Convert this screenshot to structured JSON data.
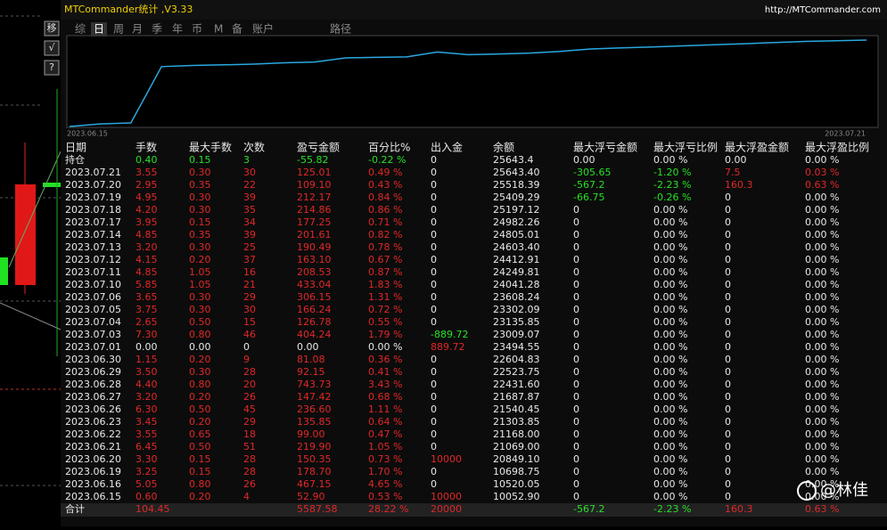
{
  "window": {
    "title": "MTCommander统计 ,V3.33",
    "url": "http://MTCommander.com"
  },
  "side_buttons": [
    "移",
    "√",
    "?"
  ],
  "tabs": [
    "综",
    "日",
    "周",
    "月",
    "季",
    "年",
    "币",
    "M",
    "备",
    "账户",
    "路径"
  ],
  "equity_chart": {
    "start_label": "2023.06.15",
    "end_label": "2023.07.21",
    "color": "#2aa8e0"
  },
  "table": {
    "headers": [
      "日期",
      "手数",
      "最大手数",
      "次数",
      "盈亏金额",
      "百分比%",
      "出入金",
      "余额",
      "最大浮亏金额",
      "最大浮亏比例",
      "最大浮盈金额",
      "最大浮盈比例"
    ],
    "rows": [
      [
        "持仓",
        "0.40",
        "0.15",
        "3",
        "-55.82",
        "-0.22 %",
        "0",
        "25643.4",
        "0.00",
        "0.00 %",
        "0.00",
        "0.00 %"
      ],
      [
        "2023.07.21",
        "3.55",
        "0.30",
        "30",
        "125.01",
        "0.49 %",
        "0",
        "25643.40",
        "-305.65",
        "-1.20 %",
        "7.5",
        "0.03 %"
      ],
      [
        "2023.07.20",
        "2.95",
        "0.35",
        "22",
        "109.10",
        "0.43 %",
        "0",
        "25518.39",
        "-567.2",
        "-2.23 %",
        "160.3",
        "0.63 %"
      ],
      [
        "2023.07.19",
        "4.95",
        "0.30",
        "39",
        "212.17",
        "0.84 %",
        "0",
        "25409.29",
        "-66.75",
        "-0.26 %",
        "0",
        "0.00 %"
      ],
      [
        "2023.07.18",
        "4.20",
        "0.30",
        "35",
        "214.86",
        "0.86 %",
        "0",
        "25197.12",
        "0",
        "0.00 %",
        "0",
        "0.00 %"
      ],
      [
        "2023.07.17",
        "3.95",
        "0.15",
        "34",
        "177.25",
        "0.71 %",
        "0",
        "24982.26",
        "0",
        "0.00 %",
        "0",
        "0.00 %"
      ],
      [
        "2023.07.14",
        "4.85",
        "0.35",
        "39",
        "201.61",
        "0.82 %",
        "0",
        "24805.01",
        "0",
        "0.00 %",
        "0",
        "0.00 %"
      ],
      [
        "2023.07.13",
        "3.20",
        "0.30",
        "25",
        "190.49",
        "0.78 %",
        "0",
        "24603.40",
        "0",
        "0.00 %",
        "0",
        "0.00 %"
      ],
      [
        "2023.07.12",
        "4.15",
        "0.20",
        "37",
        "163.10",
        "0.67 %",
        "0",
        "24412.91",
        "0",
        "0.00 %",
        "0",
        "0.00 %"
      ],
      [
        "2023.07.11",
        "4.85",
        "1.05",
        "16",
        "208.53",
        "0.87 %",
        "0",
        "24249.81",
        "0",
        "0.00 %",
        "0",
        "0.00 %"
      ],
      [
        "2023.07.10",
        "5.85",
        "1.05",
        "21",
        "433.04",
        "1.83 %",
        "0",
        "24041.28",
        "0",
        "0.00 %",
        "0",
        "0.00 %"
      ],
      [
        "2023.07.06",
        "3.65",
        "0.30",
        "29",
        "306.15",
        "1.31 %",
        "0",
        "23608.24",
        "0",
        "0.00 %",
        "0",
        "0.00 %"
      ],
      [
        "2023.07.05",
        "3.75",
        "0.30",
        "30",
        "166.24",
        "0.72 %",
        "0",
        "23302.09",
        "0",
        "0.00 %",
        "0",
        "0.00 %"
      ],
      [
        "2023.07.04",
        "2.65",
        "0.50",
        "15",
        "126.78",
        "0.55 %",
        "0",
        "23135.85",
        "0",
        "0.00 %",
        "0",
        "0.00 %"
      ],
      [
        "2023.07.03",
        "7.30",
        "0.80",
        "46",
        "404.24",
        "1.79 %",
        "-889.72",
        "23009.07",
        "0",
        "0.00 %",
        "0",
        "0.00 %"
      ],
      [
        "2023.07.01",
        "0.00",
        "0.00",
        "0",
        "0.00",
        "0.00 %",
        "889.72",
        "23494.55",
        "0",
        "0.00 %",
        "0",
        "0.00 %"
      ],
      [
        "2023.06.30",
        "1.15",
        "0.20",
        "9",
        "81.08",
        "0.36 %",
        "0",
        "22604.83",
        "0",
        "0.00 %",
        "0",
        "0.00 %"
      ],
      [
        "2023.06.29",
        "3.50",
        "0.30",
        "28",
        "92.15",
        "0.41 %",
        "0",
        "22523.75",
        "0",
        "0.00 %",
        "0",
        "0.00 %"
      ],
      [
        "2023.06.28",
        "4.40",
        "0.80",
        "20",
        "743.73",
        "3.43 %",
        "0",
        "22431.60",
        "0",
        "0.00 %",
        "0",
        "0.00 %"
      ],
      [
        "2023.06.27",
        "3.20",
        "0.20",
        "26",
        "147.42",
        "0.68 %",
        "0",
        "21687.87",
        "0",
        "0.00 %",
        "0",
        "0.00 %"
      ],
      [
        "2023.06.26",
        "6.30",
        "0.50",
        "45",
        "236.60",
        "1.11 %",
        "0",
        "21540.45",
        "0",
        "0.00 %",
        "0",
        "0.00 %"
      ],
      [
        "2023.06.23",
        "3.45",
        "0.20",
        "29",
        "135.85",
        "0.64 %",
        "0",
        "21303.85",
        "0",
        "0.00 %",
        "0",
        "0.00 %"
      ],
      [
        "2023.06.22",
        "3.55",
        "0.65",
        "18",
        "99.00",
        "0.47 %",
        "0",
        "21168.00",
        "0",
        "0.00 %",
        "0",
        "0.00 %"
      ],
      [
        "2023.06.21",
        "6.45",
        "0.50",
        "51",
        "219.90",
        "1.05 %",
        "0",
        "21069.00",
        "0",
        "0.00 %",
        "0",
        "0.00 %"
      ],
      [
        "2023.06.20",
        "3.30",
        "0.15",
        "28",
        "150.35",
        "0.73 %",
        "10000",
        "20849.10",
        "0",
        "0.00 %",
        "0",
        "0.00 %"
      ],
      [
        "2023.06.19",
        "3.25",
        "0.15",
        "28",
        "178.70",
        "1.70 %",
        "0",
        "10698.75",
        "0",
        "0.00 %",
        "0",
        "0.00 %"
      ],
      [
        "2023.06.16",
        "5.05",
        "0.80",
        "26",
        "467.15",
        "4.65 %",
        "0",
        "10520.05",
        "0",
        "0.00 %",
        "0",
        "0.00 %"
      ],
      [
        "2023.06.15",
        "0.60",
        "0.20",
        "4",
        "52.90",
        "0.53 %",
        "10000",
        "10052.90",
        "0",
        "0.00 %",
        "0",
        "0.00 %"
      ]
    ],
    "totals": {
      "日期": "合计",
      "手数": "104.45",
      "盈亏金额": "5587.58",
      "百分比%": "28.22 %",
      "出入金": "20000",
      "最大浮亏金额": "-567.2",
      "最大浮亏比例": "-2.23 %",
      "最大浮盈金额": "160.3",
      "最大浮盈比例": "0.63 %"
    }
  },
  "watermark": "@林佳"
}
